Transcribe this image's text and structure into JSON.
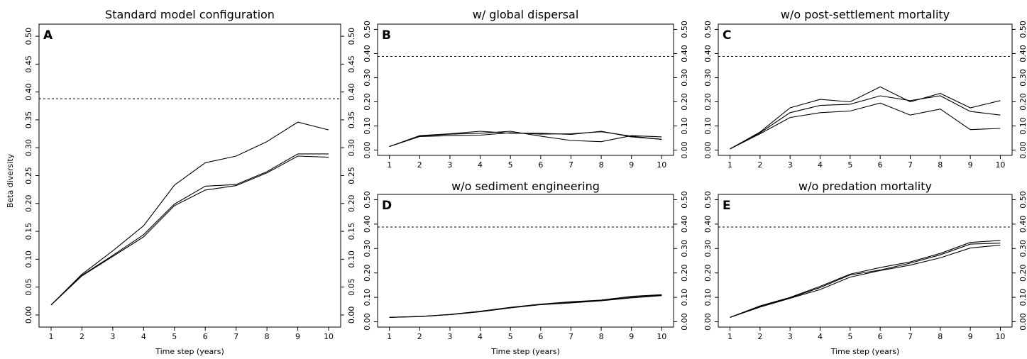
{
  "figure": {
    "ylabel": "Beta diversity",
    "xlabel": "Time step (years)"
  },
  "chart_data": [
    {
      "type": "line",
      "panel": "A",
      "title": "Standard model configuration",
      "x": [
        1,
        2,
        3,
        4,
        5,
        6,
        7,
        8,
        9,
        10
      ],
      "xlim": [
        1,
        10
      ],
      "ylim": [
        0,
        0.5
      ],
      "yticks": [
        "0.00",
        "0.05",
        "0.10",
        "0.15",
        "0.20",
        "0.25",
        "0.30",
        "0.35",
        "0.40",
        "0.45",
        "0.50"
      ],
      "xticks": [
        "1",
        "2",
        "3",
        "4",
        "5",
        "6",
        "7",
        "8",
        "9",
        "10"
      ],
      "xlabel": "Time step (years)",
      "ylabel": "Beta diversity",
      "reference_line": 0.388,
      "series": [
        {
          "values": [
            0.018,
            0.073,
            0.115,
            0.16,
            0.233,
            0.273,
            0.285,
            0.311,
            0.346,
            0.332
          ]
        },
        {
          "values": [
            0.018,
            0.071,
            0.107,
            0.144,
            0.199,
            0.231,
            0.234,
            0.257,
            0.289,
            0.289
          ]
        },
        {
          "values": [
            0.018,
            0.07,
            0.105,
            0.14,
            0.196,
            0.224,
            0.232,
            0.255,
            0.285,
            0.283
          ]
        }
      ]
    },
    {
      "type": "line",
      "panel": "B",
      "title": "w/ global dispersal",
      "x": [
        1,
        2,
        3,
        4,
        5,
        6,
        7,
        8,
        9,
        10
      ],
      "xlim": [
        1,
        10
      ],
      "ylim": [
        0,
        0.5
      ],
      "yticks": [
        "0.00",
        "0.10",
        "0.20",
        "0.30",
        "0.40",
        "0.50"
      ],
      "xticks": [
        "1",
        "2",
        "3",
        "4",
        "5",
        "6",
        "7",
        "8",
        "9",
        "10"
      ],
      "xlabel": "",
      "ylabel": "",
      "reference_line": 0.388,
      "series": [
        {
          "values": [
            0.015,
            0.06,
            0.068,
            0.078,
            0.07,
            0.07,
            0.065,
            0.078,
            0.055,
            0.045
          ]
        },
        {
          "values": [
            0.015,
            0.058,
            0.066,
            0.07,
            0.078,
            0.058,
            0.04,
            0.035,
            0.06,
            0.055
          ]
        },
        {
          "values": [
            0.015,
            0.056,
            0.06,
            0.062,
            0.072,
            0.066,
            0.068,
            0.076,
            0.058,
            0.044
          ]
        }
      ]
    },
    {
      "type": "line",
      "panel": "C",
      "title": "w/o post-settlement mortality",
      "x": [
        1,
        2,
        3,
        4,
        5,
        6,
        7,
        8,
        9,
        10
      ],
      "xlim": [
        1,
        10
      ],
      "ylim": [
        0,
        0.5
      ],
      "yticks": [
        "0.00",
        "0.10",
        "0.20",
        "0.30",
        "0.40",
        "0.50"
      ],
      "xticks": [
        "1",
        "2",
        "3",
        "4",
        "5",
        "6",
        "7",
        "8",
        "9",
        "10"
      ],
      "xlabel": "",
      "ylabel": "",
      "reference_line": 0.388,
      "series": [
        {
          "values": [
            0.005,
            0.075,
            0.175,
            0.21,
            0.2,
            0.262,
            0.2,
            0.235,
            0.175,
            0.205
          ]
        },
        {
          "values": [
            0.005,
            0.072,
            0.155,
            0.185,
            0.19,
            0.225,
            0.205,
            0.225,
            0.16,
            0.145
          ]
        },
        {
          "values": [
            0.005,
            0.068,
            0.135,
            0.155,
            0.162,
            0.195,
            0.145,
            0.17,
            0.085,
            0.09
          ]
        }
      ]
    },
    {
      "type": "line",
      "panel": "D",
      "title": "w/o sediment engineering",
      "x": [
        1,
        2,
        3,
        4,
        5,
        6,
        7,
        8,
        9,
        10
      ],
      "xlim": [
        1,
        10
      ],
      "ylim": [
        0,
        0.5
      ],
      "yticks": [
        "0.00",
        "0.10",
        "0.20",
        "0.30",
        "0.40",
        "0.50"
      ],
      "xticks": [
        "1",
        "2",
        "3",
        "4",
        "5",
        "6",
        "7",
        "8",
        "9",
        "10"
      ],
      "xlabel": "Time step (years)",
      "ylabel": "",
      "reference_line": 0.388,
      "series": [
        {
          "values": [
            0.018,
            0.022,
            0.03,
            0.043,
            0.059,
            0.072,
            0.082,
            0.089,
            0.104,
            0.111
          ]
        },
        {
          "values": [
            0.018,
            0.022,
            0.029,
            0.042,
            0.058,
            0.071,
            0.079,
            0.087,
            0.1,
            0.109
          ]
        },
        {
          "values": [
            0.018,
            0.021,
            0.029,
            0.041,
            0.057,
            0.07,
            0.077,
            0.086,
            0.098,
            0.107
          ]
        }
      ]
    },
    {
      "type": "line",
      "panel": "E",
      "title": "w/o predation mortality",
      "x": [
        1,
        2,
        3,
        4,
        5,
        6,
        7,
        8,
        9,
        10
      ],
      "xlim": [
        1,
        10
      ],
      "ylim": [
        0,
        0.5
      ],
      "yticks": [
        "0.00",
        "0.10",
        "0.20",
        "0.30",
        "0.40",
        "0.50"
      ],
      "xticks": [
        "1",
        "2",
        "3",
        "4",
        "5",
        "6",
        "7",
        "8",
        "9",
        "10"
      ],
      "xlabel": "Time step (years)",
      "ylabel": "",
      "reference_line": 0.388,
      "series": [
        {
          "values": [
            0.018,
            0.065,
            0.1,
            0.145,
            0.195,
            0.222,
            0.245,
            0.28,
            0.325,
            0.333
          ]
        },
        {
          "values": [
            0.018,
            0.063,
            0.098,
            0.14,
            0.192,
            0.212,
            0.24,
            0.274,
            0.318,
            0.322
          ]
        },
        {
          "values": [
            0.018,
            0.06,
            0.096,
            0.132,
            0.183,
            0.21,
            0.232,
            0.262,
            0.302,
            0.314
          ]
        }
      ]
    }
  ]
}
